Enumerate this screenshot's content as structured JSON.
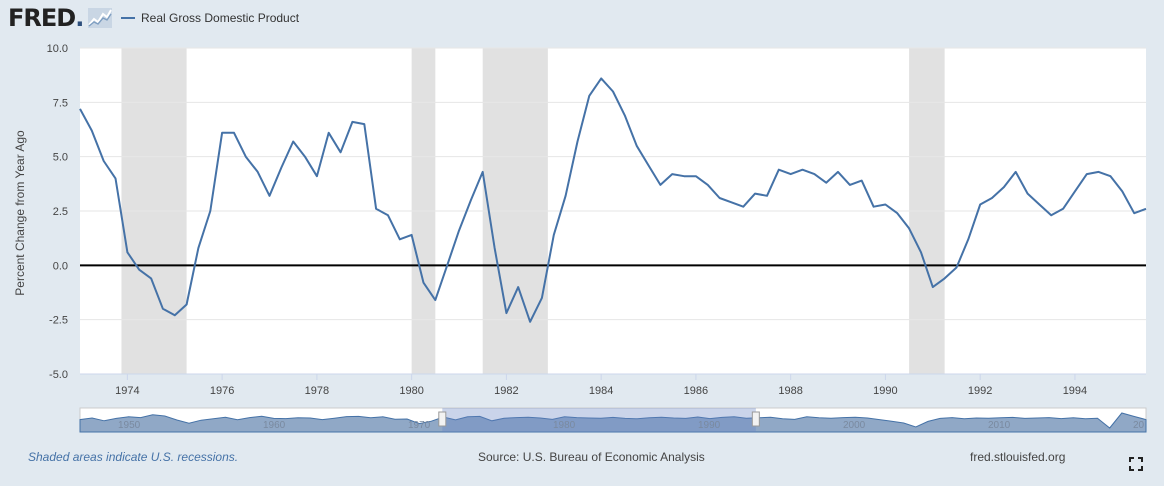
{
  "header": {
    "logo": "FRED",
    "logo_dot": ".",
    "legend_label": "Real Gross Domestic Product"
  },
  "footer": {
    "recession_note": "Shaded areas indicate U.S. recessions.",
    "source": "Source: U.S. Bureau of Economic Analysis",
    "site": "fred.stlouisfed.org"
  },
  "colors": {
    "series": "#4572a7",
    "recession": "#e1e1e1",
    "zero_line": "#000000",
    "background": "#e1e9f0",
    "plot_bg": "#ffffff"
  },
  "icons": [
    "fred-graph-icon",
    "fullscreen-icon"
  ],
  "chart_data": {
    "type": "line",
    "title": "",
    "ylabel": "Percent Change from Year Ago",
    "xlabel": "",
    "ylim": [
      -5.0,
      10.0
    ],
    "xlim": [
      1973.0,
      1995.5
    ],
    "y_ticks": [
      "10.0",
      "7.5",
      "5.0",
      "2.5",
      "0.0",
      "-2.5",
      "-5.0"
    ],
    "x_ticks": [
      "1974",
      "1976",
      "1978",
      "1980",
      "1982",
      "1984",
      "1986",
      "1988",
      "1990",
      "1992",
      "1994"
    ],
    "grid": "horizontal",
    "recessions": [
      [
        1973.875,
        1975.25
      ],
      [
        1980.0,
        1980.5
      ],
      [
        1981.5,
        1982.875
      ],
      [
        1990.5,
        1991.25
      ]
    ],
    "series": [
      {
        "name": "Real Gross Domestic Product",
        "x": [
          1973.0,
          1973.25,
          1973.5,
          1973.75,
          1974.0,
          1974.25,
          1974.5,
          1974.75,
          1975.0,
          1975.25,
          1975.5,
          1975.75,
          1976.0,
          1976.25,
          1976.5,
          1976.75,
          1977.0,
          1977.25,
          1977.5,
          1977.75,
          1978.0,
          1978.25,
          1978.5,
          1978.75,
          1979.0,
          1979.25,
          1979.5,
          1979.75,
          1980.0,
          1980.25,
          1980.5,
          1980.75,
          1981.0,
          1981.25,
          1981.5,
          1981.75,
          1982.0,
          1982.25,
          1982.5,
          1982.75,
          1983.0,
          1983.25,
          1983.5,
          1983.75,
          1984.0,
          1984.25,
          1984.5,
          1984.75,
          1985.0,
          1985.25,
          1985.5,
          1985.75,
          1986.0,
          1986.25,
          1986.5,
          1986.75,
          1987.0,
          1987.25,
          1987.5,
          1987.75,
          1988.0,
          1988.25,
          1988.5,
          1988.75,
          1989.0,
          1989.25,
          1989.5,
          1989.75,
          1990.0,
          1990.25,
          1990.5,
          1990.75,
          1991.0,
          1991.25,
          1991.5,
          1991.75,
          1992.0,
          1992.25,
          1992.5,
          1992.75,
          1993.0,
          1993.25,
          1993.5,
          1993.75,
          1994.0,
          1994.25,
          1994.5,
          1994.75,
          1995.0,
          1995.25,
          1995.5
        ],
        "values": [
          7.2,
          6.2,
          4.8,
          4.0,
          0.6,
          -0.2,
          -0.6,
          -2.0,
          -2.3,
          -1.8,
          0.8,
          2.5,
          6.1,
          6.1,
          5.0,
          4.3,
          3.2,
          4.5,
          5.7,
          5.0,
          4.1,
          6.1,
          5.2,
          6.6,
          6.5,
          2.6,
          2.3,
          1.2,
          1.4,
          -0.8,
          -1.6,
          0.0,
          1.6,
          3.0,
          4.3,
          0.8,
          -2.2,
          -1.0,
          -2.6,
          -1.5,
          1.4,
          3.2,
          5.7,
          7.8,
          8.6,
          8.0,
          6.9,
          5.5,
          4.6,
          3.7,
          4.2,
          4.1,
          4.1,
          3.7,
          3.1,
          2.9,
          2.7,
          3.3,
          3.2,
          4.4,
          4.2,
          4.4,
          4.2,
          3.8,
          4.3,
          3.7,
          3.9,
          2.7,
          2.8,
          2.4,
          1.7,
          0.6,
          -1.0,
          -0.6,
          -0.1,
          1.2,
          2.8,
          3.1,
          3.6,
          4.3,
          3.3,
          2.8,
          2.3,
          2.6,
          3.4,
          4.2,
          4.3,
          4.1,
          3.4,
          2.4,
          2.6
        ]
      }
    ],
    "navigator": {
      "x_ticks": [
        "1950",
        "1960",
        "1970",
        "1980",
        "1990",
        "2000",
        "2010",
        "20"
      ],
      "values": [
        1.2,
        2.0,
        0.6,
        1.8,
        2.6,
        2.2,
        3.6,
        3.0,
        1.0,
        -0.6,
        0.9,
        1.6,
        2.4,
        1.1,
        2.2,
        2.9,
        1.8,
        1.7,
        2.1,
        2.0,
        1.2,
        1.9,
        2.7,
        2.8,
        2.1,
        2.6,
        1.4,
        1.5,
        -0.8,
        0.4,
        2.5,
        1.1,
        2.6,
        2.8,
        0.6,
        1.9,
        2.2,
        2.4,
        2.0,
        1.3,
        2.6,
        2.2,
        2.0,
        1.9,
        2.3,
        1.8,
        1.6,
        2.1,
        2.4,
        2.0,
        1.8,
        2.5,
        1.7,
        2.3,
        2.6,
        1.9,
        2.1,
        2.4,
        1.6,
        1.3,
        2.6,
        2.1,
        1.9,
        2.2,
        2.4,
        2.0,
        1.2,
        0.4,
        -0.5,
        -2.5,
        0.3,
        1.8,
        2.2,
        1.6,
        2.0,
        1.9,
        2.1,
        2.3,
        1.8,
        2.0,
        2.2,
        1.7,
        2.1,
        1.6,
        1.9,
        -3.0,
        4.5,
        2.8,
        1.2
      ],
      "selection": [
        1973.0,
        1995.5
      ],
      "range": [
        1947.0,
        2023.5
      ]
    }
  }
}
